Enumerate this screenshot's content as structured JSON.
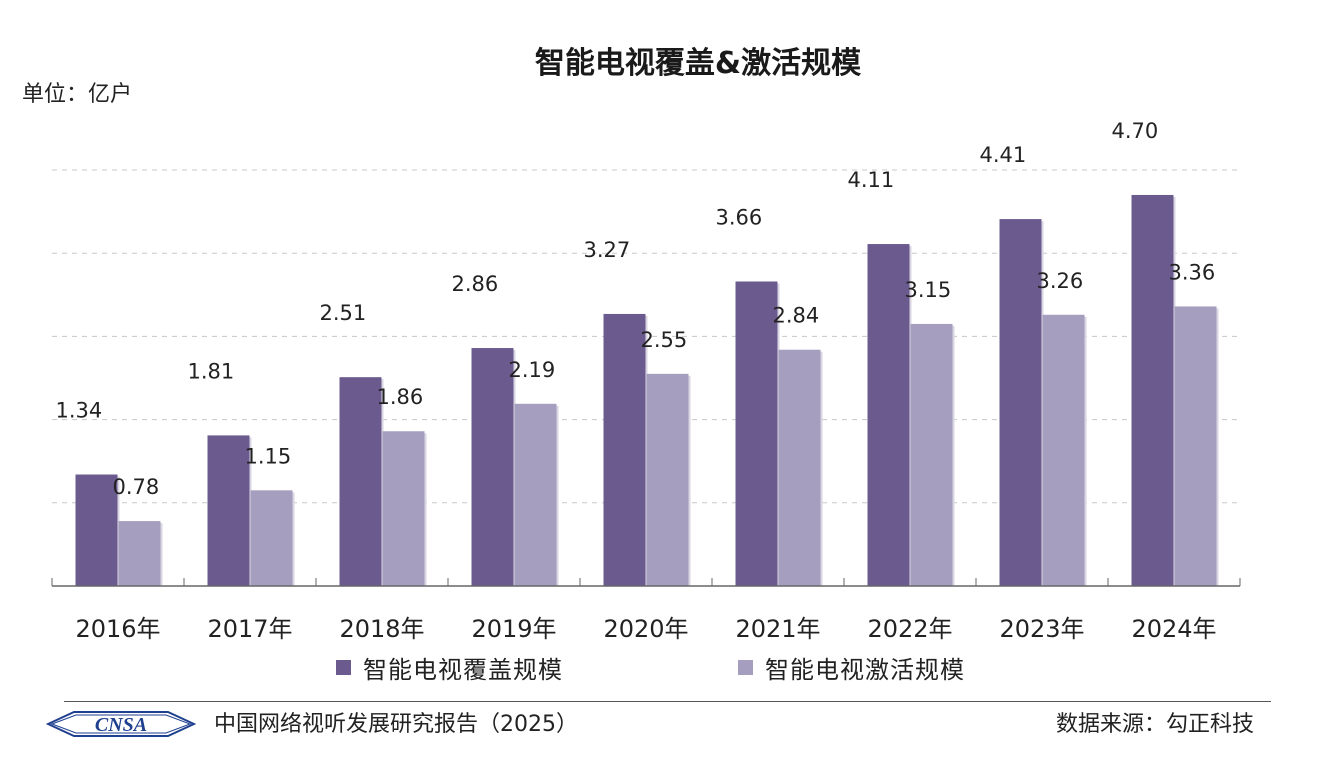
{
  "header": {
    "title": "智能电视覆盖&激活规模",
    "unit": "单位：亿户"
  },
  "colors": {
    "coverage": "#6b5a8e",
    "activation": "#a59ebf",
    "grid": "#c8c8c8",
    "axis": "#666666"
  },
  "chart_data": {
    "type": "bar",
    "title": "智能电视覆盖&激活规模",
    "ylabel": "单位：亿户",
    "xlabel": "",
    "categories": [
      "2016年",
      "2017年",
      "2018年",
      "2019年",
      "2020年",
      "2021年",
      "2022年",
      "2023年",
      "2024年"
    ],
    "series": [
      {
        "name": "智能电视覆盖规模",
        "values": [
          1.34,
          1.81,
          2.51,
          2.86,
          3.27,
          3.66,
          4.11,
          4.41,
          4.7
        ],
        "labels": [
          "1.34",
          "1.81",
          "2.51",
          "2.86",
          "3.27",
          "3.66",
          "4.11",
          "4.41",
          "4.70"
        ]
      },
      {
        "name": "智能电视激活规模",
        "values": [
          0.78,
          1.15,
          1.86,
          2.19,
          2.55,
          2.84,
          3.15,
          3.26,
          3.36
        ],
        "labels": [
          "0.78",
          "1.15",
          "1.86",
          "2.19",
          "2.55",
          "2.84",
          "3.15",
          "3.26",
          "3.36"
        ]
      }
    ],
    "ylim": [
      0,
      5
    ],
    "grid": true,
    "legend_position": "bottom"
  },
  "legend": {
    "coverage_label": "智能电视覆盖规模",
    "activation_label": "智能电视激活规模"
  },
  "footer": {
    "logo_text": "CNSA",
    "report": "中国网络视听发展研究报告（2025）",
    "source": "数据来源：勾正科技"
  }
}
